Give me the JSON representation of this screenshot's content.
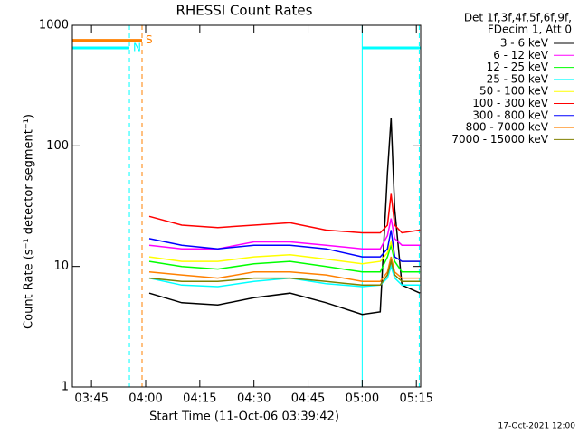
{
  "chart_data": {
    "type": "line",
    "title": "RHESSI Count Rates",
    "xlabel": "Start Time (11-Oct-06 03:39:42)",
    "ylabel": "Count Rate (s⁻¹ detector segment⁻¹)",
    "legend_header": [
      "Det 1f,3f,4f,5f,6f,9f,",
      "FDecim 1, Att 0"
    ],
    "footer": "17-Oct-2021 12:00",
    "log_y": true,
    "xlim": [
      219.7,
      316.2
    ],
    "ylim": [
      1,
      1000
    ],
    "xticks": [
      {
        "value": 225,
        "label": "03:45"
      },
      {
        "value": 240,
        "label": "04:00"
      },
      {
        "value": 255,
        "label": "04:15"
      },
      {
        "value": 270,
        "label": "04:30"
      },
      {
        "value": 285,
        "label": "04:45"
      },
      {
        "value": 300,
        "label": "05:00"
      },
      {
        "value": 315,
        "label": "05:15"
      }
    ],
    "yticks": [
      1,
      10,
      100,
      1000
    ],
    "x": [
      241,
      250,
      260,
      270,
      280,
      290,
      300,
      305,
      307,
      308,
      309,
      311,
      316
    ],
    "series": [
      {
        "name": "3 - 6 keV",
        "color": "#000000",
        "values": [
          6,
          5,
          4.8,
          5.5,
          6,
          5,
          4,
          4.2,
          60,
          170,
          30,
          7,
          6
        ]
      },
      {
        "name": "6 - 12 keV",
        "color": "#ff00ff",
        "values": [
          15,
          14,
          14,
          16,
          16,
          15,
          14,
          14,
          18,
          25,
          17,
          15,
          15
        ]
      },
      {
        "name": "12 - 25 keV",
        "color": "#00ff00",
        "values": [
          11,
          10,
          9.5,
          10.5,
          11,
          10,
          9,
          9,
          12,
          15,
          11,
          9,
          9
        ]
      },
      {
        "name": "25 - 50 keV",
        "color": "#00ffff",
        "values": [
          8,
          7,
          6.8,
          7.5,
          8,
          7.2,
          6.8,
          7,
          8,
          10,
          8,
          7,
          7
        ]
      },
      {
        "name": "50 - 100 keV",
        "color": "#ffff00",
        "values": [
          12,
          11,
          11,
          12,
          12.5,
          11.5,
          10.5,
          11,
          13,
          16,
          12,
          11,
          11
        ]
      },
      {
        "name": "100 - 300 keV",
        "color": "#ff0000",
        "values": [
          26,
          22,
          21,
          22,
          23,
          20,
          19,
          19,
          22,
          40,
          22,
          19,
          20
        ]
      },
      {
        "name": "300 - 800 keV",
        "color": "#0000ff",
        "values": [
          17,
          15,
          14,
          15,
          15,
          14,
          12,
          12,
          14,
          20,
          12,
          11,
          11
        ]
      },
      {
        "name": "800 - 7000 keV",
        "color": "#ff8000",
        "values": [
          9,
          8.5,
          8,
          9,
          9,
          8.5,
          7.5,
          7.5,
          9,
          12,
          9,
          8,
          8
        ]
      },
      {
        "name": "7000 - 15000 keV",
        "color": "#808000",
        "values": [
          8,
          7.5,
          7.5,
          8,
          8,
          7.5,
          7,
          7,
          8.5,
          11,
          8.5,
          7.5,
          7.5
        ]
      }
    ],
    "flags": [
      {
        "label": "S",
        "color": "#ff8000",
        "level": 750,
        "start": 219.7,
        "end": 239
      },
      {
        "label": "N",
        "color": "#00ffff",
        "level": 650,
        "start": 219.7,
        "end": 235.5
      },
      {
        "label": null,
        "color": "#00ffff",
        "level": 650,
        "start": 300,
        "end": 316.2
      }
    ],
    "markers": [
      {
        "x": 219.7,
        "color": "#00ffff",
        "dashed": false
      },
      {
        "x": 235.5,
        "color": "#00ffff",
        "dashed": true
      },
      {
        "x": 239,
        "color": "#ff8000",
        "dashed": true
      },
      {
        "x": 300,
        "color": "#00ffff",
        "dashed": false
      },
      {
        "x": 315.8,
        "color": "#00ffff",
        "dashed": true
      }
    ]
  }
}
